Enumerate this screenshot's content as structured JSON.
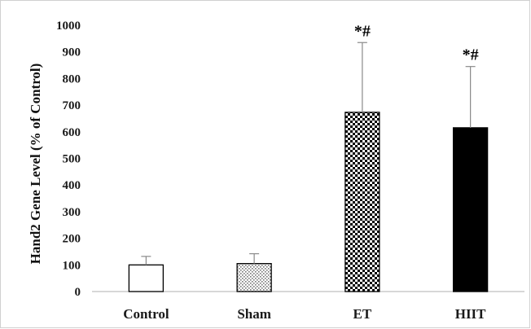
{
  "chart_data": {
    "type": "bar",
    "title": "",
    "xlabel": "",
    "ylabel": "Hand2 Gene Level (% of Control)",
    "ylim": [
      0,
      1000
    ],
    "ytick_step": 100,
    "categories": [
      "Control",
      "Sham",
      "ET",
      "HIIT"
    ],
    "values": [
      100,
      105,
      673,
      615
    ],
    "error_upper": [
      32,
      37,
      262,
      230
    ],
    "annotations": [
      "",
      "",
      "*#",
      "*#"
    ],
    "fills": [
      "white",
      "dots",
      "checker",
      "black"
    ],
    "grid": false,
    "legend": "none"
  }
}
